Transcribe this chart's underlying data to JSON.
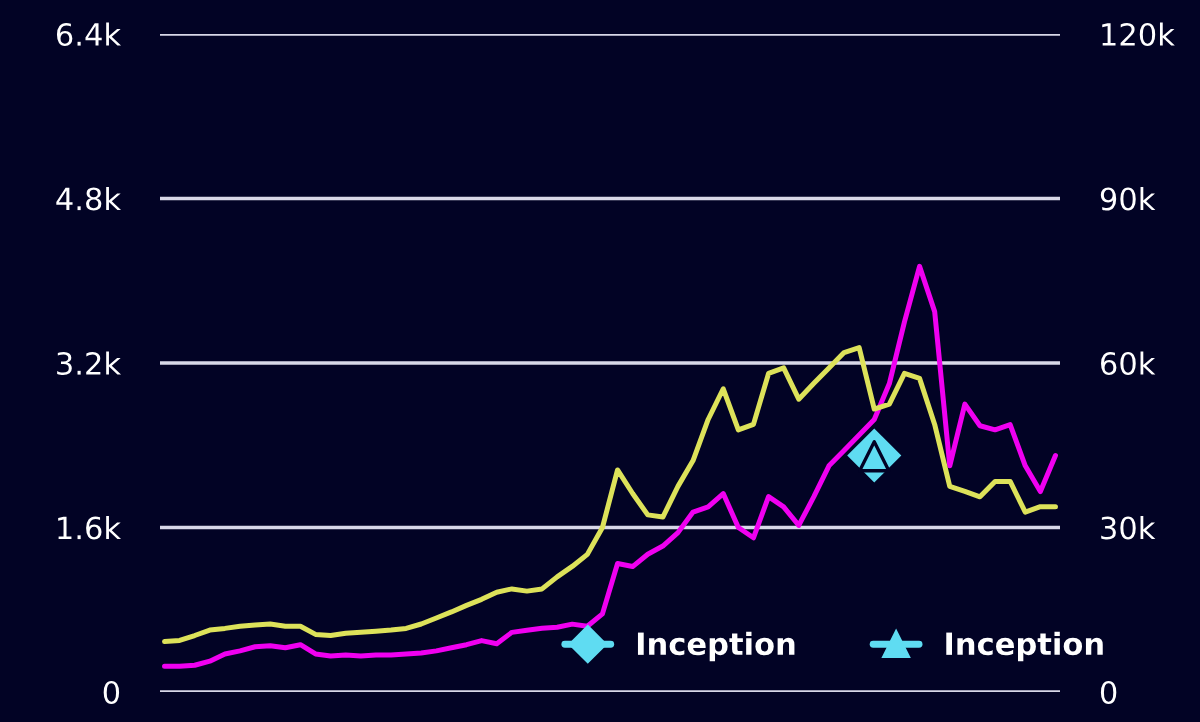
{
  "chart_data": {
    "type": "line",
    "categories": [
      null,
      null,
      null,
      null,
      null,
      null,
      null,
      null,
      null,
      null,
      null,
      null,
      null,
      null,
      null,
      null,
      null,
      null,
      null,
      null,
      null,
      null,
      null,
      null,
      null,
      null,
      null,
      null,
      null,
      null,
      null,
      null,
      null,
      null,
      null,
      null,
      null,
      null,
      null,
      null,
      null,
      null,
      null,
      null,
      null,
      null,
      null,
      null,
      null,
      null,
      null,
      null,
      null,
      null,
      null,
      null,
      null,
      null,
      null,
      null
    ],
    "series": [
      {
        "color": "#dde25a",
        "axis": "y2",
        "values": [
          9200,
          9400,
          10300,
          11300,
          11600,
          12000,
          12200,
          12400,
          12000,
          12000,
          10500,
          10300,
          10700,
          10900,
          11100,
          11300,
          11600,
          12400,
          13500,
          14600,
          15800,
          16900,
          18200,
          18800,
          18400,
          18800,
          21000,
          22900,
          25100,
          30000,
          40500,
          36200,
          32300,
          31900,
          37500,
          42200,
          49700,
          55300,
          47800,
          48800,
          58100,
          59100,
          53400,
          56300,
          59100,
          61900,
          62800,
          51600,
          52500,
          58100,
          57200,
          48800,
          37500,
          36600,
          35600,
          38400,
          38400,
          32800,
          33800,
          33800
        ]
      },
      {
        "color": "#f000f0",
        "axis": "y",
        "values": [
          250,
          250,
          260,
          300,
          370,
          400,
          440,
          450,
          430,
          460,
          370,
          350,
          360,
          350,
          360,
          360,
          370,
          380,
          400,
          430,
          460,
          500,
          470,
          580,
          600,
          620,
          630,
          660,
          640,
          760,
          1250,
          1220,
          1340,
          1420,
          1550,
          1750,
          1800,
          1930,
          1600,
          1500,
          1900,
          1800,
          1620,
          1900,
          2200,
          2350,
          2500,
          2650,
          3000,
          3600,
          4140,
          3700,
          2200,
          2800,
          2590,
          2550,
          2600,
          2200,
          1950,
          2300
        ]
      },
      {
        "name": "Inception",
        "type": "scatter",
        "marker": "diamond",
        "color": "#5fdcf2",
        "axis": "y",
        "values": [
          null,
          null,
          null,
          null,
          null,
          null,
          null,
          null,
          null,
          null,
          null,
          null,
          null,
          null,
          null,
          null,
          null,
          null,
          null,
          null,
          null,
          null,
          null,
          null,
          null,
          null,
          null,
          null,
          null,
          null,
          null,
          null,
          null,
          null,
          null,
          null,
          null,
          null,
          null,
          null,
          null,
          null,
          null,
          null,
          null,
          null,
          null,
          2300,
          null,
          null,
          null,
          null,
          null,
          null,
          null,
          null,
          null,
          null,
          null,
          null
        ]
      },
      {
        "name": "Inception",
        "type": "scatter",
        "marker": "triangle",
        "color": "#5fdcf2",
        "axis": "y2",
        "values": [
          null,
          null,
          null,
          null,
          null,
          null,
          null,
          null,
          null,
          null,
          null,
          null,
          null,
          null,
          null,
          null,
          null,
          null,
          null,
          null,
          null,
          null,
          null,
          null,
          null,
          null,
          null,
          null,
          null,
          null,
          null,
          null,
          null,
          null,
          null,
          null,
          null,
          null,
          null,
          null,
          null,
          null,
          null,
          null,
          null,
          null,
          null,
          43000,
          null,
          null,
          null,
          null,
          null,
          null,
          null,
          null,
          null,
          null,
          null,
          null
        ]
      }
    ],
    "ylim": [
      0,
      6400
    ],
    "yticks": [
      {
        "value": 0,
        "label": "0"
      },
      {
        "value": 1600,
        "label": "1.6k"
      },
      {
        "value": 3200,
        "label": "3.2k"
      },
      {
        "value": 4800,
        "label": "4.8k"
      },
      {
        "value": 6400,
        "label": "6.4k"
      }
    ],
    "y2lim": [
      0,
      120000
    ],
    "y2ticks": [
      {
        "value": 0,
        "label": "0"
      },
      {
        "value": 30000,
        "label": "30k"
      },
      {
        "value": 60000,
        "label": "60k"
      },
      {
        "value": 90000,
        "label": "90k"
      },
      {
        "value": 120000,
        "label": "120k"
      }
    ],
    "grid": "y",
    "legend": "bottom",
    "tick_labels": "y"
  }
}
